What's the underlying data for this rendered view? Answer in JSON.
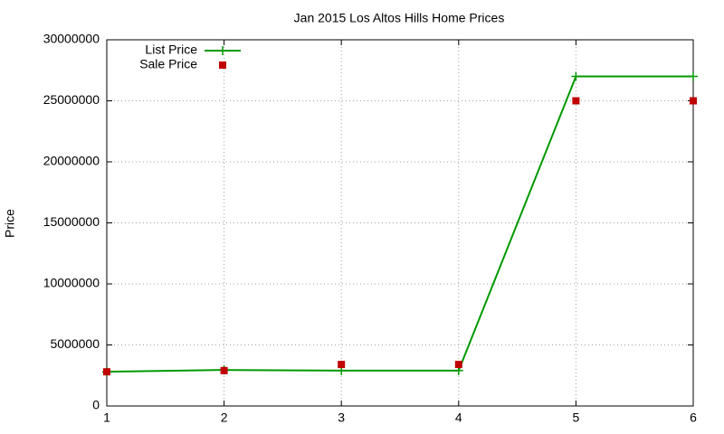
{
  "chart_data": {
    "type": "line",
    "title": "Jan 2015 Los Altos Hills Home Prices",
    "ylabel": "Price",
    "x": [
      1,
      2,
      3,
      4,
      5,
      6
    ],
    "series": [
      {
        "name": "List Price",
        "color": "#009900",
        "type": "line",
        "values": [
          2800000,
          2950000,
          2900000,
          2900000,
          27000000,
          27000000
        ]
      },
      {
        "name": "Sale Price",
        "color": "#c00000",
        "type": "scatter",
        "values": [
          2800000,
          2900000,
          3400000,
          3400000,
          25000000,
          25000000
        ]
      }
    ],
    "xlim": [
      1,
      6
    ],
    "xticks": [
      1,
      2,
      3,
      4,
      5,
      6
    ],
    "ylim": [
      0,
      30000000
    ],
    "yticks": [
      0,
      5000000,
      10000000,
      15000000,
      20000000,
      25000000,
      30000000
    ],
    "grid": true,
    "legend": "upper left"
  }
}
